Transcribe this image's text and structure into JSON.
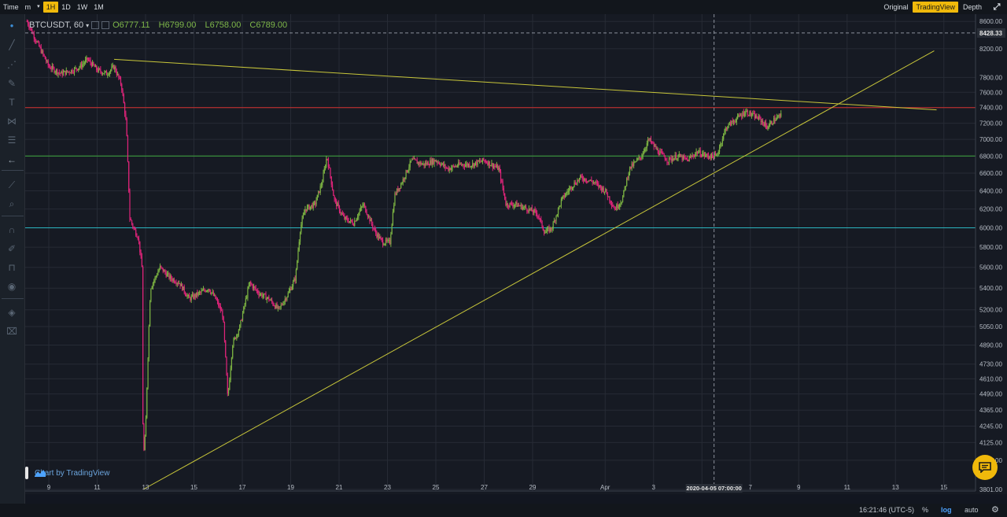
{
  "toolbar": {
    "time_label": "Time",
    "intervals": [
      "m",
      "1H",
      "1D",
      "1W",
      "1M"
    ],
    "active_interval": "1H",
    "views": [
      "Original",
      "TradingView",
      "Depth"
    ],
    "active_view": "TradingView"
  },
  "legend": {
    "symbol": "BTCUSDT, 60",
    "open": "O6777.11",
    "high": "H6799.00",
    "low": "L6758.00",
    "close": "C6789.00"
  },
  "badge": {
    "text": "Chart by TradingView"
  },
  "bottom": {
    "time": "16:21:46 (UTC-5)",
    "percent": "%",
    "log": "log",
    "auto": "auto"
  },
  "crosshair": {
    "date_label": "2020-04-05 07:00:00",
    "price_label": "8428.33"
  },
  "colors": {
    "up": "#7cb342",
    "down": "#e0247a",
    "accent": "#f0b90b",
    "trend": "#c8c63a",
    "red_line": "#d3302f",
    "green_line": "#3fa83f",
    "cyan_line": "#2bb5c0"
  },
  "chart_data": {
    "type": "candlestick",
    "symbol": "BTCUSDT",
    "interval": "60",
    "scale": "log",
    "y_ticks": [
      8600,
      8200,
      7800,
      7600,
      7400,
      7200,
      7000,
      6800,
      6600,
      6400,
      6200,
      6000,
      5800,
      5600,
      5400,
      5200,
      5050,
      4890,
      4730,
      4610,
      4490,
      4365,
      4245,
      4125,
      4000,
      3801
    ],
    "y_tick_labels": [
      "8600.00",
      "8200.00",
      "7800.00",
      "7600.00",
      "7400.00",
      "7200.00",
      "7000.00",
      "6800.00",
      "6600.00",
      "6400.00",
      "6200.00",
      "6000.00",
      "5800.00",
      "5600.00",
      "5400.00",
      "5200.00",
      "5050.00",
      "4890.00",
      "4730.00",
      "4610.00",
      "4490.00",
      "4365.00",
      "4245.00",
      "4125.00",
      "4000.00",
      "3801.00"
    ],
    "x_ticks": [
      "9",
      "11",
      "13",
      "15",
      "17",
      "19",
      "21",
      "23",
      "25",
      "27",
      "29",
      "Apr",
      "3",
      "5",
      "7",
      "9",
      "11",
      "13",
      "15"
    ],
    "x_tick_days": [
      9,
      11,
      13,
      15,
      17,
      19,
      21,
      23,
      25,
      27,
      29,
      32,
      34,
      36,
      38,
      40,
      42,
      44,
      46
    ],
    "ylim": [
      3801,
      8650
    ],
    "horizontal_lines": [
      {
        "price": 7400,
        "color": "#d3302f"
      },
      {
        "price": 6800,
        "color": "#3fa83f"
      },
      {
        "price": 6000,
        "color": "#2bb5c0"
      }
    ],
    "trend_lines": [
      {
        "from": {
          "day": 11.7,
          "price": 8050
        },
        "to": {
          "day": 45.7,
          "price": 7370
        }
      },
      {
        "from": {
          "day": 12.9,
          "price": 3801
        },
        "to": {
          "day": 45.6,
          "price": 8170
        }
      }
    ],
    "price_path": [
      [
        8.1,
        8600
      ],
      [
        8.5,
        8300
      ],
      [
        9.0,
        7950
      ],
      [
        9.5,
        7850
      ],
      [
        10.0,
        7900
      ],
      [
        10.3,
        7950
      ],
      [
        10.6,
        8050
      ],
      [
        11.0,
        7900
      ],
      [
        11.4,
        7850
      ],
      [
        11.7,
        7950
      ],
      [
        12.0,
        7700
      ],
      [
        12.2,
        7200
      ],
      [
        12.35,
        6100
      ],
      [
        12.5,
        6000
      ],
      [
        12.7,
        5900
      ],
      [
        12.85,
        5600
      ],
      [
        12.9,
        4000
      ],
      [
        13.0,
        4200
      ],
      [
        13.2,
        5400
      ],
      [
        13.6,
        5600
      ],
      [
        14.0,
        5500
      ],
      [
        14.4,
        5450
      ],
      [
        14.8,
        5300
      ],
      [
        15.2,
        5350
      ],
      [
        15.6,
        5400
      ],
      [
        15.9,
        5300
      ],
      [
        16.2,
        5150
      ],
      [
        16.4,
        4450
      ],
      [
        16.6,
        4900
      ],
      [
        16.9,
        5050
      ],
      [
        17.3,
        5450
      ],
      [
        17.7,
        5350
      ],
      [
        18.1,
        5300
      ],
      [
        18.5,
        5200
      ],
      [
        18.9,
        5350
      ],
      [
        19.2,
        5500
      ],
      [
        19.4,
        6000
      ],
      [
        19.6,
        6200
      ],
      [
        20.0,
        6250
      ],
      [
        20.3,
        6500
      ],
      [
        20.5,
        6800
      ],
      [
        20.8,
        6300
      ],
      [
        21.2,
        6100
      ],
      [
        21.6,
        6050
      ],
      [
        22.0,
        6250
      ],
      [
        22.5,
        5950
      ],
      [
        22.8,
        5850
      ],
      [
        23.1,
        5850
      ],
      [
        23.3,
        6350
      ],
      [
        23.6,
        6500
      ],
      [
        24.0,
        6750
      ],
      [
        24.5,
        6700
      ],
      [
        25.0,
        6750
      ],
      [
        25.5,
        6650
      ],
      [
        26.0,
        6700
      ],
      [
        26.5,
        6700
      ],
      [
        27.0,
        6750
      ],
      [
        27.3,
        6700
      ],
      [
        27.6,
        6650
      ],
      [
        27.9,
        6250
      ],
      [
        28.3,
        6250
      ],
      [
        28.8,
        6200
      ],
      [
        29.2,
        6150
      ],
      [
        29.5,
        5950
      ],
      [
        29.8,
        6000
      ],
      [
        30.2,
        6300
      ],
      [
        30.6,
        6450
      ],
      [
        31.0,
        6550
      ],
      [
        31.5,
        6500
      ],
      [
        32.0,
        6400
      ],
      [
        32.4,
        6200
      ],
      [
        32.7,
        6300
      ],
      [
        33.0,
        6650
      ],
      [
        33.5,
        6800
      ],
      [
        33.8,
        7000
      ],
      [
        34.2,
        6850
      ],
      [
        34.6,
        6750
      ],
      [
        35.0,
        6800
      ],
      [
        35.4,
        6750
      ],
      [
        35.8,
        6850
      ],
      [
        36.2,
        6800
      ],
      [
        36.6,
        6800
      ],
      [
        37.0,
        7150
      ],
      [
        37.4,
        7250
      ],
      [
        37.8,
        7350
      ],
      [
        38.1,
        7300
      ],
      [
        38.4,
        7250
      ],
      [
        38.7,
        7150
      ],
      [
        39.0,
        7250
      ],
      [
        39.3,
        7300
      ]
    ]
  }
}
